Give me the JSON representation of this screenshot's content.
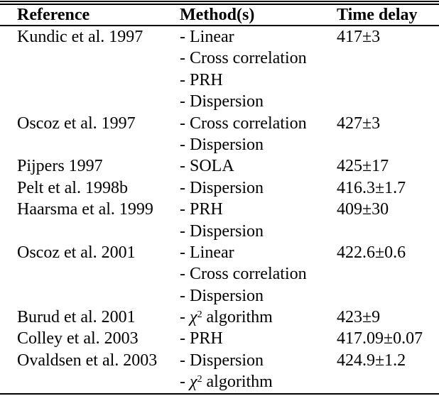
{
  "table": {
    "headers": [
      "Reference",
      "Method(s)",
      "Time delay"
    ],
    "rows": [
      {
        "reference": "Kundic et al. 1997",
        "methods": [
          "- Linear",
          "- Cross correlation",
          "- PRH",
          "- Dispersion"
        ],
        "time_delay": "417±3"
      },
      {
        "reference": "Oscoz et al. 1997",
        "methods": [
          "- Cross correlation",
          "- Dispersion"
        ],
        "time_delay": "427±3"
      },
      {
        "reference": "Pijpers 1997",
        "methods": [
          "- SOLA"
        ],
        "time_delay": "425±17"
      },
      {
        "reference": "Pelt et al. 1998b",
        "methods": [
          "- Dispersion"
        ],
        "time_delay": "416.3±1.7"
      },
      {
        "reference": "Haarsma et al. 1999",
        "methods": [
          "- PRH",
          "- Dispersion"
        ],
        "time_delay": "409±30"
      },
      {
        "reference": "Oscoz et al. 2001",
        "methods": [
          "- Linear",
          "- Cross correlation",
          "- Dispersion"
        ],
        "time_delay": "422.6±0.6"
      },
      {
        "reference": "Burud et al. 2001",
        "methods": [
          "- χ² algorithm"
        ],
        "time_delay": "423±9"
      },
      {
        "reference": "Colley et al. 2003",
        "methods": [
          "- PRH"
        ],
        "time_delay": "417.09±0.07"
      },
      {
        "reference": "Ovaldsen et al. 2003",
        "methods": [
          "- Dispersion",
          "- χ² algorithm"
        ],
        "time_delay": "424.9±1.2"
      }
    ]
  },
  "colors": {
    "text": "#000000",
    "background": "#ffffff",
    "rule": "#000000"
  }
}
